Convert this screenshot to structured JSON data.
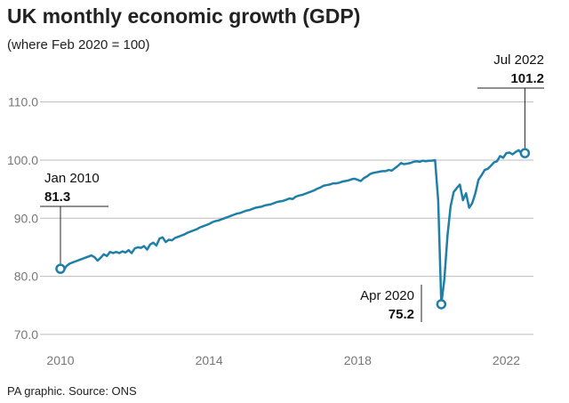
{
  "chart_data": {
    "type": "line",
    "title": "UK monthly economic growth (GDP)",
    "subtitle": "(where Feb 2020 = 100)",
    "source": "PA graphic. Source: ONS",
    "annotations": [
      "Jan 2010",
      "Apr 2020",
      "Jul 2022"
    ],
    "x": [
      2010.0,
      2010.083,
      2010.167,
      2010.25,
      2010.333,
      2010.417,
      2010.5,
      2010.583,
      2010.667,
      2010.75,
      2010.833,
      2010.917,
      2011.0,
      2011.083,
      2011.167,
      2011.25,
      2011.333,
      2011.417,
      2011.5,
      2011.583,
      2011.667,
      2011.75,
      2011.833,
      2011.917,
      2012.0,
      2012.083,
      2012.167,
      2012.25,
      2012.333,
      2012.417,
      2012.5,
      2012.583,
      2012.667,
      2012.75,
      2012.833,
      2012.917,
      2013.0,
      2013.083,
      2013.167,
      2013.25,
      2013.333,
      2013.417,
      2013.5,
      2013.583,
      2013.667,
      2013.75,
      2013.833,
      2013.917,
      2014.0,
      2014.083,
      2014.167,
      2014.25,
      2014.333,
      2014.417,
      2014.5,
      2014.583,
      2014.667,
      2014.75,
      2014.833,
      2014.917,
      2015.0,
      2015.083,
      2015.167,
      2015.25,
      2015.333,
      2015.417,
      2015.5,
      2015.583,
      2015.667,
      2015.75,
      2015.833,
      2015.917,
      2016.0,
      2016.083,
      2016.167,
      2016.25,
      2016.333,
      2016.417,
      2016.5,
      2016.583,
      2016.667,
      2016.75,
      2016.833,
      2016.917,
      2017.0,
      2017.083,
      2017.167,
      2017.25,
      2017.333,
      2017.417,
      2017.5,
      2017.583,
      2017.667,
      2017.75,
      2017.833,
      2017.917,
      2018.0,
      2018.083,
      2018.167,
      2018.25,
      2018.333,
      2018.417,
      2018.5,
      2018.583,
      2018.667,
      2018.75,
      2018.833,
      2018.917,
      2019.0,
      2019.083,
      2019.167,
      2019.25,
      2019.333,
      2019.417,
      2019.5,
      2019.583,
      2019.667,
      2019.75,
      2019.833,
      2019.917,
      2020.0,
      2020.083,
      2020.167,
      2020.25,
      2020.333,
      2020.417,
      2020.5,
      2020.583,
      2020.667,
      2020.75,
      2020.833,
      2020.917,
      2021.0,
      2021.083,
      2021.167,
      2021.25,
      2021.333,
      2021.417,
      2021.5,
      2021.583,
      2021.667,
      2021.75,
      2021.833,
      2021.917,
      2022.0,
      2022.083,
      2022.167,
      2022.25,
      2022.333,
      2022.417,
      2022.5
    ],
    "series": [
      {
        "name": "GDP",
        "color": "#1f7fa8",
        "values": [
          81.3,
          81.0,
          81.8,
          82.2,
          82.4,
          82.6,
          82.8,
          83.0,
          83.2,
          83.4,
          83.6,
          83.3,
          82.7,
          83.2,
          83.8,
          83.5,
          84.2,
          84.0,
          84.2,
          84.0,
          84.3,
          84.1,
          84.5,
          84.0,
          84.8,
          85.0,
          84.9,
          85.2,
          84.6,
          85.5,
          85.8,
          85.3,
          86.5,
          86.7,
          85.9,
          86.3,
          86.2,
          86.6,
          86.8,
          87.0,
          87.2,
          87.5,
          87.7,
          87.9,
          88.1,
          88.4,
          88.6,
          88.8,
          89.0,
          89.3,
          89.5,
          89.6,
          89.8,
          90.0,
          90.2,
          90.4,
          90.6,
          90.8,
          90.9,
          91.1,
          91.3,
          91.4,
          91.6,
          91.8,
          91.9,
          92.0,
          92.2,
          92.3,
          92.4,
          92.6,
          92.8,
          92.9,
          93.0,
          93.2,
          93.4,
          93.3,
          93.7,
          93.9,
          94.0,
          94.2,
          94.4,
          94.6,
          94.8,
          95.1,
          95.3,
          95.6,
          95.7,
          95.8,
          96.0,
          96.0,
          96.1,
          96.3,
          96.4,
          96.5,
          96.7,
          96.8,
          96.6,
          96.4,
          96.9,
          97.2,
          97.6,
          97.8,
          97.9,
          98.0,
          98.1,
          98.1,
          98.3,
          98.2,
          98.6,
          99.0,
          99.5,
          99.3,
          99.4,
          99.5,
          99.7,
          99.8,
          99.7,
          99.9,
          99.8,
          99.9,
          99.9,
          100.0,
          93.0,
          75.2,
          79.5,
          87.0,
          92.0,
          94.5,
          95.2,
          95.8,
          93.1,
          94.3,
          91.8,
          92.6,
          94.3,
          96.6,
          97.4,
          98.3,
          98.5,
          99.0,
          99.6,
          99.8,
          100.7,
          100.4,
          101.2,
          101.3,
          101.0,
          101.4,
          101.7,
          101.1,
          101.2
        ]
      }
    ],
    "xlim": [
      2009.45,
      2022.73
    ],
    "xticks": [
      2010,
      2014,
      2018,
      2022
    ],
    "ylim": [
      68,
      115
    ],
    "yticks": [
      {
        "value": 70,
        "label": "70.0"
      },
      {
        "value": 80,
        "label": "80.0"
      },
      {
        "value": 90,
        "label": "90.0"
      },
      {
        "value": 100,
        "label": "100.0"
      },
      {
        "value": 110,
        "label": "110.0"
      }
    ],
    "grid": true
  }
}
